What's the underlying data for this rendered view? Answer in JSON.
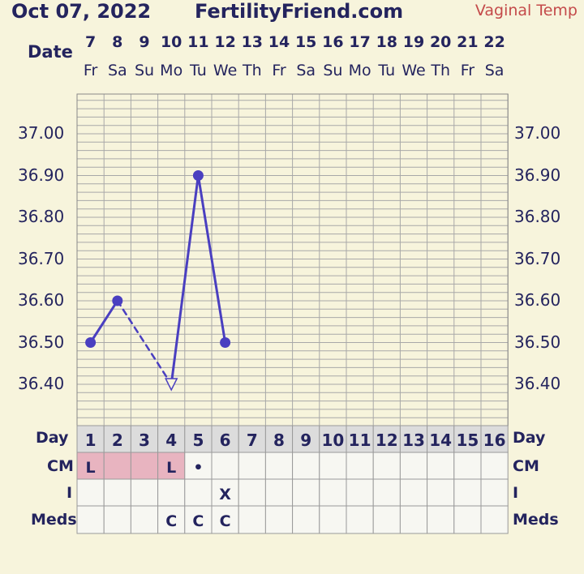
{
  "header": {
    "date": "Oct 07, 2022",
    "site": "FertilityFriend.com",
    "temp_type": "Vaginal Temp"
  },
  "labels": {
    "date_row": "Date",
    "day_row": "Day",
    "cm_row": "CM",
    "i_row": "I",
    "meds_row": "Meds"
  },
  "colors": {
    "line": "#4a3fc0",
    "grid": "#a8a8a8",
    "background": "#f7f4dc",
    "cm_fill": "#e8b4c0"
  },
  "chart_data": {
    "type": "line",
    "title": "",
    "ylim": [
      36.3,
      37.1
    ],
    "yticks": [
      "37.00",
      "36.90",
      "36.80",
      "36.70",
      "36.60",
      "36.50",
      "36.40"
    ],
    "ytick_values": [
      37.0,
      36.9,
      36.8,
      36.7,
      36.6,
      36.5,
      36.4
    ],
    "dates": [
      "7",
      "8",
      "9",
      "10",
      "11",
      "12",
      "13",
      "14",
      "15",
      "16",
      "17",
      "18",
      "19",
      "20",
      "21",
      "22"
    ],
    "weekdays": [
      "Fr",
      "Sa",
      "Su",
      "Mo",
      "Tu",
      "We",
      "Th",
      "Fr",
      "Sa",
      "Su",
      "Mo",
      "Tu",
      "We",
      "Th",
      "Fr",
      "Sa"
    ],
    "cycle_days": [
      "1",
      "2",
      "3",
      "4",
      "5",
      "6",
      "7",
      "8",
      "9",
      "10",
      "11",
      "12",
      "13",
      "14",
      "15",
      "16"
    ],
    "series": [
      {
        "points": [
          {
            "day": 1,
            "temp": 36.5,
            "marker": "dot"
          },
          {
            "day": 2,
            "temp": 36.6,
            "marker": "dot"
          },
          {
            "day": 4,
            "temp": 36.4,
            "marker": "open-triangle"
          },
          {
            "day": 5,
            "temp": 36.9,
            "marker": "dot"
          },
          {
            "day": 6,
            "temp": 36.5,
            "marker": "dot"
          }
        ],
        "segments": [
          {
            "from": 1,
            "to": 2,
            "style": "solid"
          },
          {
            "from": 2,
            "to": 4,
            "style": "dashed"
          },
          {
            "from": 4,
            "to": 5,
            "style": "solid"
          },
          {
            "from": 5,
            "to": 6,
            "style": "solid"
          }
        ]
      }
    ],
    "cm": [
      "L",
      "",
      "",
      "L",
      "•",
      "",
      "",
      "",
      "",
      "",
      "",
      "",
      "",
      "",
      "",
      ""
    ],
    "cm_highlight": [
      true,
      true,
      true,
      true,
      false,
      false,
      false,
      false,
      false,
      false,
      false,
      false,
      false,
      false,
      false,
      false
    ],
    "i": [
      "",
      "",
      "",
      "",
      "",
      "X",
      "",
      "",
      "",
      "",
      "",
      "",
      "",
      "",
      "",
      ""
    ],
    "meds": [
      "",
      "",
      "",
      "C",
      "C",
      "C",
      "",
      "",
      "",
      "",
      "",
      "",
      "",
      "",
      "",
      ""
    ]
  }
}
